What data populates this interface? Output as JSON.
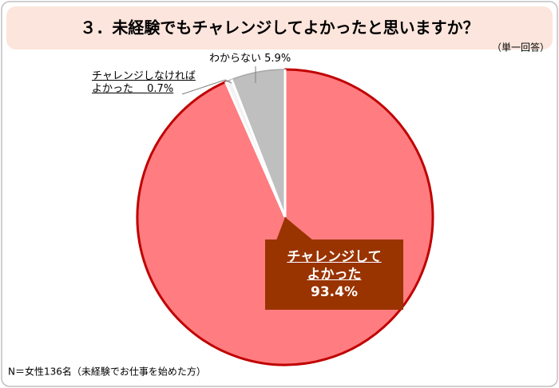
{
  "chart_data": {
    "type": "pie",
    "title": "３．未経験でもチャレンジしてよかったと思いますか？",
    "subtitle": "（単一回答）",
    "categories": [
      "チャレンジして\nよかった",
      "チャレンジしなければ\nよかった",
      "わからない"
    ],
    "values": [
      93.4,
      0.7,
      5.9
    ],
    "value_labels": [
      "93.4%",
      "0.7%",
      "5.9%"
    ],
    "colors": [
      "#ff7c80",
      "#f2f2f2",
      "#bfbfbf"
    ],
    "edgecolors": [
      "#c00000",
      "#a6a6a6",
      "#a6a6a6"
    ],
    "note": "N＝女性136名（未経験でお仕事を始めた方）"
  }
}
